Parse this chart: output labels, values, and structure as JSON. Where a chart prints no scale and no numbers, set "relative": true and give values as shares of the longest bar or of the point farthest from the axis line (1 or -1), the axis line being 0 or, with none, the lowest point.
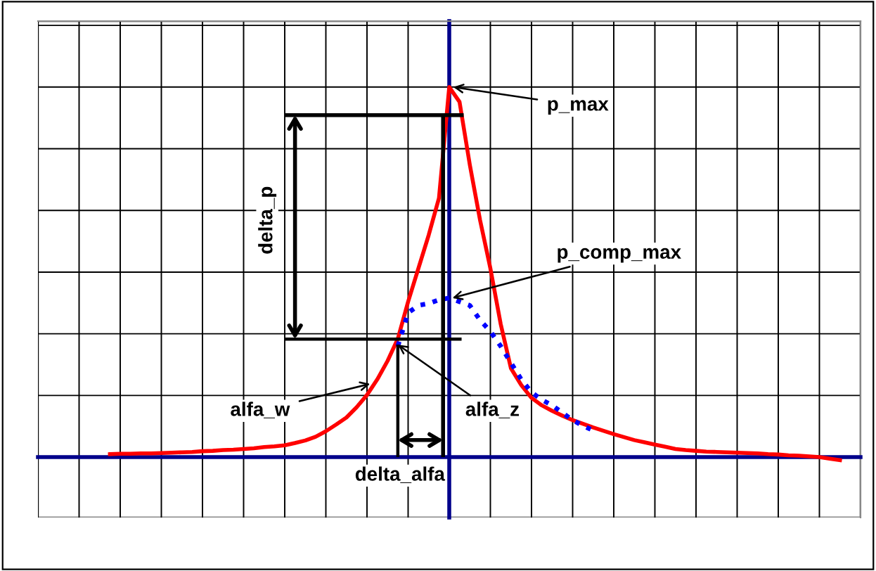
{
  "chart_data": {
    "type": "line",
    "relative": true,
    "grid": true,
    "marker": "none",
    "categories": [
      null,
      null,
      null,
      null,
      null,
      null,
      null,
      null,
      null,
      null,
      null,
      null,
      null,
      null,
      null,
      null,
      null,
      null,
      null,
      null,
      null,
      null,
      null,
      null,
      null,
      null,
      null,
      null,
      null,
      null,
      null,
      null,
      null,
      null,
      null,
      null,
      null,
      null,
      null,
      null,
      null,
      null,
      null,
      null,
      null,
      null,
      null,
      null,
      null,
      null,
      null,
      null,
      null,
      null,
      null,
      null,
      null,
      null,
      null,
      null,
      null,
      null,
      null,
      null,
      null,
      null,
      null,
      null,
      null,
      null,
      null,
      null,
      null,
      null,
      null,
      null,
      null,
      null,
      null,
      null,
      null
    ],
    "series": [
      {
        "color": "#ff0000",
        "line_style": "solid",
        "values": [
          null,
          null,
          null,
          null,
          null,
          null,
          null,
          0.008,
          0.009,
          0.009,
          0.01,
          0.01,
          0.011,
          0.012,
          0.013,
          0.014,
          0.016,
          0.017,
          0.019,
          0.02,
          0.022,
          0.024,
          0.027,
          0.029,
          0.032,
          0.038,
          0.045,
          0.055,
          0.07,
          0.088,
          0.107,
          0.135,
          0.168,
          0.21,
          0.26,
          0.32,
          0.42,
          0.51,
          0.6,
          0.7,
          1.0,
          0.96,
          0.79,
          0.64,
          0.51,
          0.36,
          0.24,
          0.195,
          0.16,
          0.14,
          0.125,
          0.112,
          0.1,
          0.09,
          0.08,
          0.071,
          0.062,
          0.054,
          0.046,
          0.04,
          0.034,
          0.028,
          0.022,
          0.019,
          0.017,
          0.015,
          0.014,
          0.013,
          0.012,
          0.011,
          0.01,
          0.008,
          0.007,
          0.005,
          0.004,
          0.002,
          0.0,
          -0.004,
          -0.008,
          null,
          null
        ]
      },
      {
        "color": "#0000ff",
        "line_style": "dotted",
        "values": [
          null,
          null,
          null,
          null,
          null,
          null,
          null,
          null,
          null,
          null,
          null,
          null,
          null,
          null,
          null,
          null,
          null,
          null,
          null,
          null,
          null,
          null,
          null,
          null,
          null,
          null,
          null,
          null,
          null,
          null,
          null,
          null,
          null,
          null,
          null,
          0.3,
          0.39,
          0.41,
          0.415,
          0.425,
          0.43,
          0.42,
          0.41,
          0.37,
          0.34,
          0.3,
          0.255,
          0.21,
          0.175,
          0.155,
          0.14,
          0.12,
          0.1,
          0.085,
          0.072,
          null,
          null,
          null,
          null,
          null,
          null,
          null,
          null,
          null,
          null,
          null,
          null,
          null,
          null,
          null,
          null,
          null,
          null,
          null,
          null,
          null,
          null,
          null,
          null,
          null,
          null
        ]
      }
    ],
    "annotations": [
      "p_max",
      "p_comp_max",
      "alfa_w",
      "alfa_z",
      "delta_p",
      "delta_alfa"
    ]
  }
}
